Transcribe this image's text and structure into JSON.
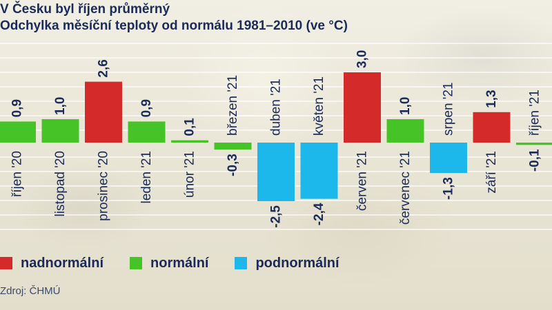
{
  "title": "V Česku byl říjen průměrný",
  "subtitle": "Odchylka měsíční teploty od normálu 1981–2010 (ve °C)",
  "colors": {
    "nadnormalni": "#d42a2a",
    "normalni": "#46c326",
    "podnormalni": "#1cb8ec",
    "text": "#1b2a57"
  },
  "legend": [
    {
      "label": "nadnormální",
      "color": "#d42a2a"
    },
    {
      "label": "normální",
      "color": "#46c326"
    },
    {
      "label": "podnormální",
      "color": "#1cb8ec"
    }
  ],
  "source": "Zdroj: ČHMÚ",
  "chart_data": {
    "type": "bar",
    "title": "V Česku byl říjen průměrný",
    "subtitle": "Odchylka měsíční teploty od normálu 1981–2010 (ve °C)",
    "categories": [
      "říjen '20",
      "listopad '20",
      "prosinec '20",
      "leden '21",
      "únor '21",
      "březen '21",
      "duben '21",
      "květen '21",
      "červen '21",
      "červenec '21",
      "srpen '21",
      "září '21",
      "říjen '21"
    ],
    "values": [
      0.9,
      1.0,
      2.6,
      0.9,
      0.1,
      -0.3,
      -2.5,
      -2.4,
      3.0,
      1.0,
      -1.3,
      1.3,
      -0.1
    ],
    "value_labels": [
      "0,9",
      "1,0",
      "2,6",
      "0,9",
      "0,1",
      "-0,3",
      "-2,5",
      "-2,4",
      "3,0",
      "1,0",
      "-1,3",
      "1,3",
      "-0,1"
    ],
    "categories_class": [
      "normální",
      "normální",
      "nadnormální",
      "normální",
      "normální",
      "normální",
      "podnormální",
      "podnormální",
      "nadnormální",
      "normální",
      "podnormální",
      "nadnormální",
      "normální"
    ],
    "legend": [
      "nadnormální",
      "normální",
      "podnormální"
    ],
    "legend_position": "bottom-left",
    "grid": true
  }
}
